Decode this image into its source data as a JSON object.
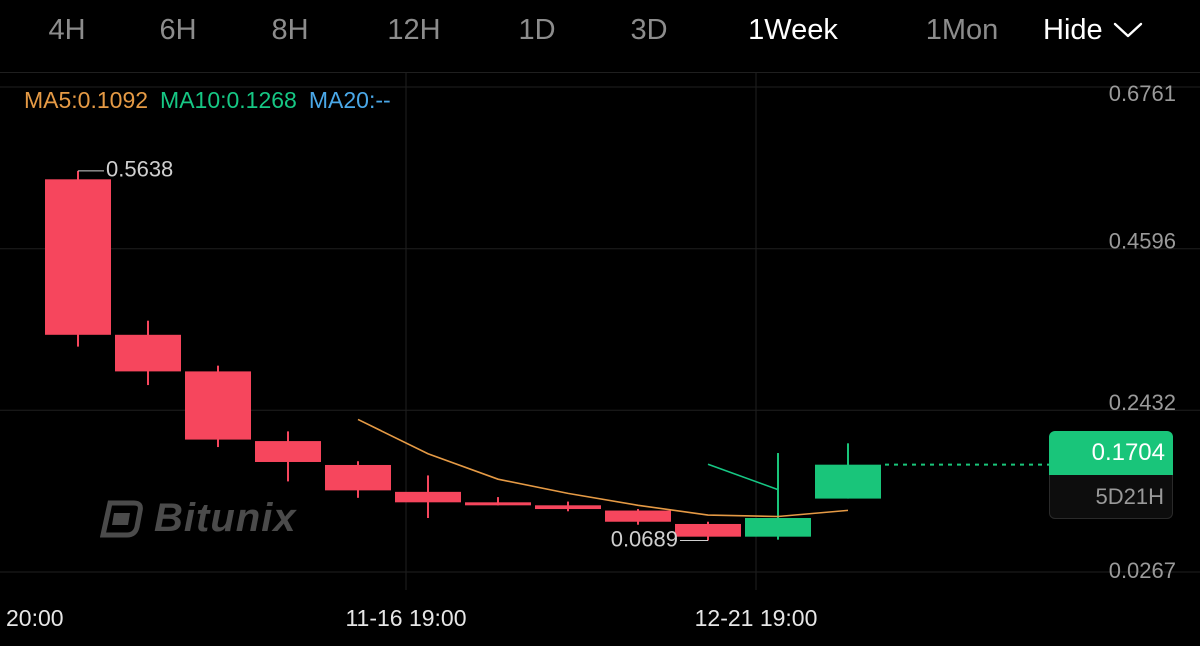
{
  "timeframes": {
    "tabs": [
      {
        "label": "4H",
        "active": false
      },
      {
        "label": "6H",
        "active": false
      },
      {
        "label": "8H",
        "active": false
      },
      {
        "label": "12H",
        "active": false
      },
      {
        "label": "1D",
        "active": false
      },
      {
        "label": "3D",
        "active": false
      },
      {
        "label": "1Week",
        "active": true
      },
      {
        "label": "1Mon",
        "active": false
      }
    ],
    "hide_label": "Hide"
  },
  "legend": {
    "ma5": "MA5:0.1092",
    "ma10": "MA10:0.1268",
    "ma20": "MA20:--"
  },
  "watermark": "Bitunix",
  "current_price": {
    "price": "0.1704",
    "countdown": "5D21H"
  },
  "colors": {
    "up": "#19c57a",
    "down": "#f6465d",
    "ma5": "#e59a45",
    "ma10": "#16c784",
    "ma20": "#4aa8e8",
    "grid": "#1f1f1f",
    "axis_text": "#9a9a9a"
  },
  "chart_data": {
    "type": "candlestick",
    "y_ticks": [
      "0.6761",
      "0.4596",
      "0.2432",
      "0.0267"
    ],
    "ylim": [
      0.0267,
      0.6761
    ],
    "x_ticks": [
      {
        "label": "20:00",
        "index": 0
      },
      {
        "label": "11-16 19:00",
        "index": 5
      },
      {
        "label": "12-21 19:00",
        "index": 10
      }
    ],
    "candles": [
      {
        "open": 0.5525,
        "high": 0.5638,
        "low": 0.3285,
        "close": 0.3443
      },
      {
        "open": 0.3443,
        "high": 0.3632,
        "low": 0.277,
        "close": 0.2953
      },
      {
        "open": 0.2953,
        "high": 0.303,
        "low": 0.194,
        "close": 0.204
      },
      {
        "open": 0.202,
        "high": 0.215,
        "low": 0.148,
        "close": 0.174
      },
      {
        "open": 0.17,
        "high": 0.175,
        "low": 0.126,
        "close": 0.136
      },
      {
        "open": 0.134,
        "high": 0.156,
        "low": 0.099,
        "close": 0.12
      },
      {
        "open": 0.12,
        "high": 0.127,
        "low": 0.116,
        "close": 0.119
      },
      {
        "open": 0.116,
        "high": 0.121,
        "low": 0.108,
        "close": 0.111
      },
      {
        "open": 0.109,
        "high": 0.111,
        "low": 0.09,
        "close": 0.094
      },
      {
        "open": 0.091,
        "high": 0.094,
        "low": 0.0689,
        "close": 0.074
      },
      {
        "open": 0.074,
        "high": 0.186,
        "low": 0.07,
        "close": 0.099
      },
      {
        "open": 0.125,
        "high": 0.199,
        "low": 0.125,
        "close": 0.1704
      }
    ],
    "ma5": [
      null,
      null,
      null,
      null,
      0.231,
      0.185,
      0.151,
      0.132,
      0.116,
      0.103,
      0.101,
      0.1092
    ],
    "ma10": [
      null,
      null,
      null,
      null,
      null,
      null,
      null,
      null,
      null,
      0.171,
      0.137,
      null
    ],
    "ma20": [],
    "annotations": {
      "high_label": "0.5638",
      "low_label": "0.0689"
    }
  }
}
